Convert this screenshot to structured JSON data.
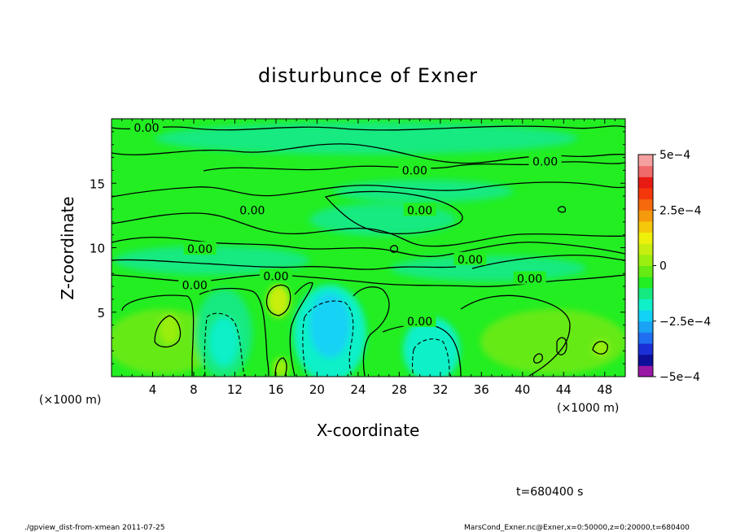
{
  "chart_data": {
    "type": "heatmap",
    "title": "disturbunce of Exner",
    "xlabel": "X-coordinate",
    "ylabel": "Z-coordinate",
    "x_unit": "(×1000 m)",
    "z_unit": "(×1000 m)",
    "xlim": [
      0,
      50
    ],
    "ylim": [
      0,
      20
    ],
    "x_ticks": [
      4,
      8,
      12,
      16,
      20,
      24,
      28,
      32,
      36,
      40,
      44,
      48
    ],
    "y_ticks": [
      5,
      10,
      15
    ],
    "colorbar": {
      "range": [
        -0.0005,
        0.0005
      ],
      "tick_labels": [
        "5e−4",
        "2.5e−4",
        "0",
        "−2.5e−4",
        "−5e−4"
      ],
      "tick_values": [
        0.0005,
        0.00025,
        0,
        -0.00025,
        -0.0005
      ],
      "levels": [
        "#9a18a6",
        "#0e0e9a",
        "#1c2fd6",
        "#1f6ff0",
        "#1aa2f5",
        "#12d2f5",
        "#10f0c8",
        "#14ea80",
        "#22ee22",
        "#66ea14",
        "#9aee10",
        "#c8ee10",
        "#eef00c",
        "#f5c80c",
        "#f59a0c",
        "#f56a0c",
        "#f5380c",
        "#e81a14",
        "#f06a6a",
        "#f5a0a0"
      ]
    },
    "contour_labels": [
      {
        "text": "0.00",
        "x": 3.4,
        "z": 19.3
      },
      {
        "text": "0.00",
        "x": 29.5,
        "z": 16.0
      },
      {
        "text": "0.00",
        "x": 42.2,
        "z": 16.7
      },
      {
        "text": "0.00",
        "x": 13.7,
        "z": 12.9
      },
      {
        "text": "0.00",
        "x": 30.0,
        "z": 12.9
      },
      {
        "text": "0.00",
        "x": 8.6,
        "z": 9.9
      },
      {
        "text": "0.00",
        "x": 34.9,
        "z": 9.1
      },
      {
        "text": "0.00",
        "x": 16.0,
        "z": 7.8
      },
      {
        "text": "0.00",
        "x": 40.7,
        "z": 7.6
      },
      {
        "text": "0.00",
        "x": 8.1,
        "z": 7.1
      },
      {
        "text": "0.00",
        "x": 30.0,
        "z": 4.3
      }
    ],
    "time_label": "t=680400 s"
  },
  "footer": {
    "left": "./gpview_dist-from-xmean  2011-07-25",
    "right": "MarsCond_Exner.nc@Exner,x=0:50000,z=0:20000,t=680400"
  }
}
